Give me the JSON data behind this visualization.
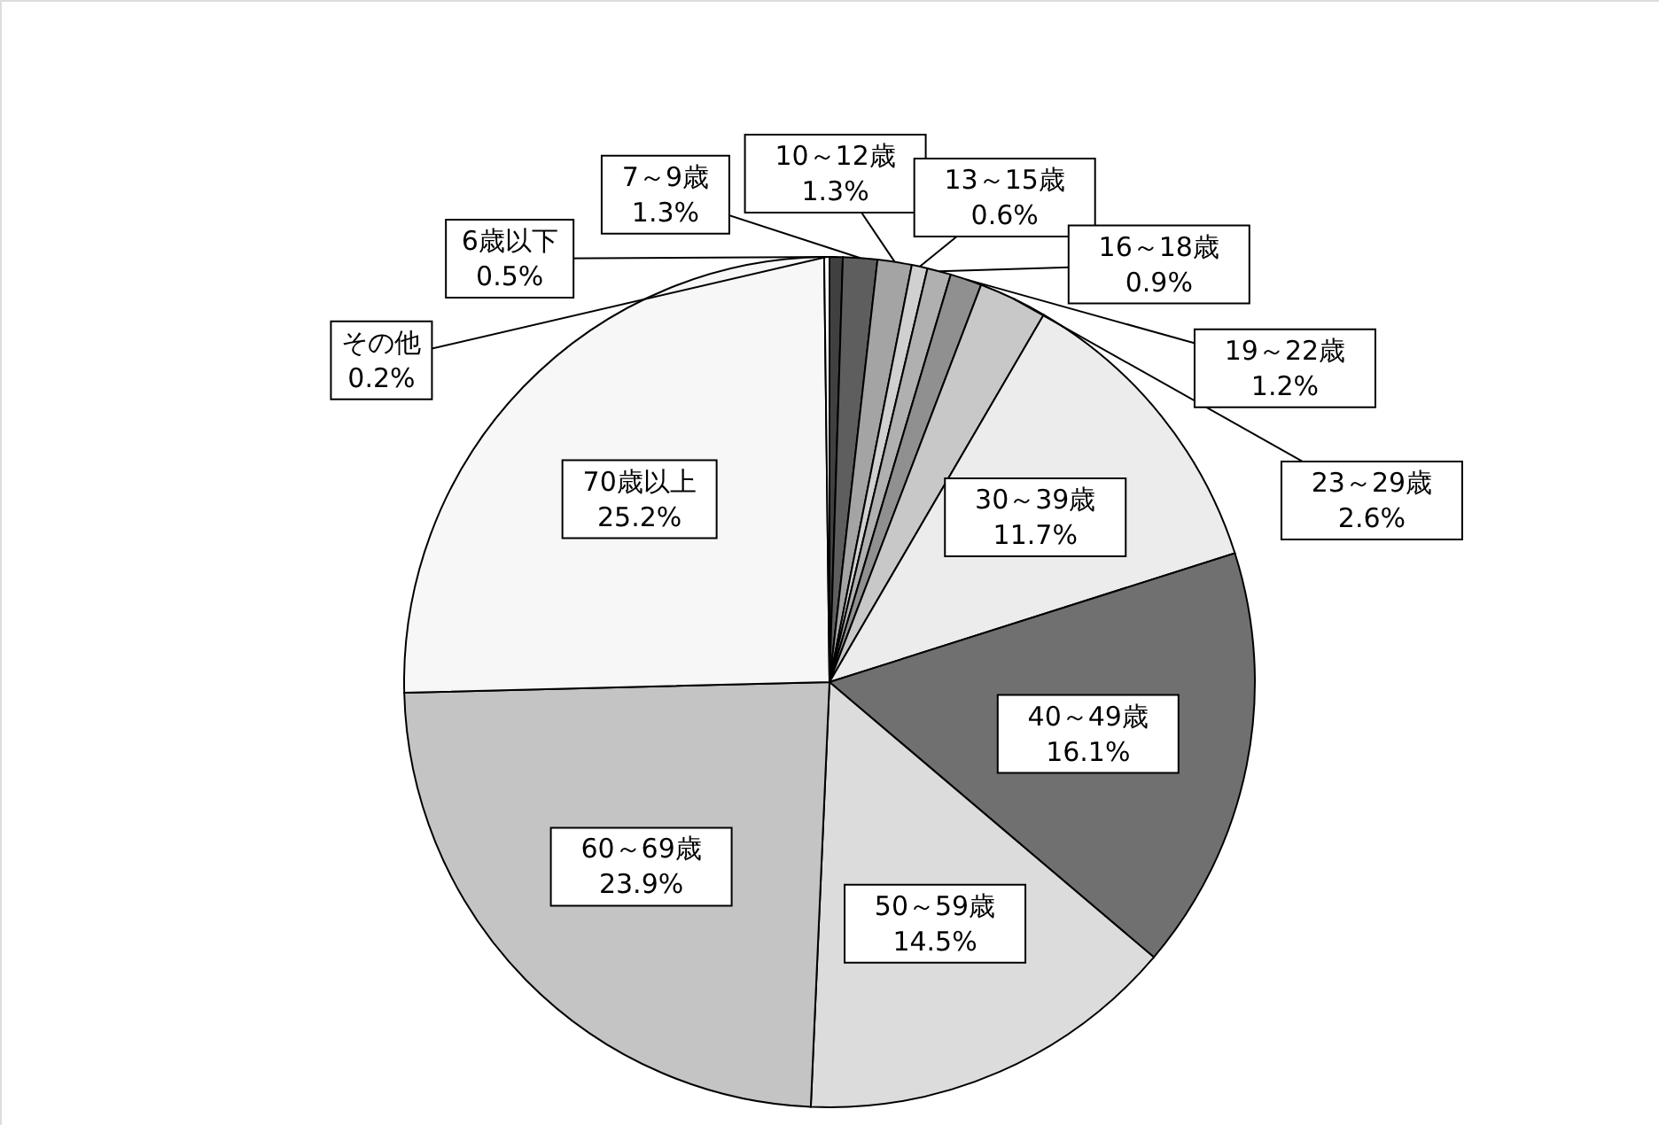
{
  "chart_data": {
    "type": "pie",
    "categories": [
      "6歳以下",
      "7～9歳",
      "10～12歳",
      "13～15歳",
      "16～18歳",
      "19～22歳",
      "23～29歳",
      "30～39歳",
      "40～49歳",
      "50～59歳",
      "60～69歳",
      "70歳以上",
      "その他"
    ],
    "values": [
      0.5,
      1.3,
      1.3,
      0.6,
      0.9,
      1.2,
      2.6,
      11.7,
      16.1,
      14.5,
      23.9,
      25.2,
      0.2
    ],
    "value_labels": [
      "0.5%",
      "1.3%",
      "1.3%",
      "0.6%",
      "0.9%",
      "1.2%",
      "2.6%",
      "11.7%",
      "16.1%",
      "14.5%",
      "23.9%",
      "25.2%",
      "0.2%"
    ],
    "colors": [
      "#404040",
      "#5e5e5e",
      "#a4a4a4",
      "#d0d0d0",
      "#b0b0b0",
      "#909090",
      "#c8c8c8",
      "#ececec",
      "#707070",
      "#dcdcdc",
      "#c4c4c4",
      "#f7f7f7",
      "#ffffff"
    ]
  }
}
